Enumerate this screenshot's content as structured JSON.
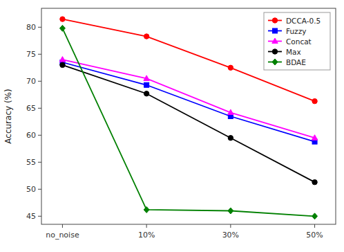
{
  "chart_data": {
    "type": "line",
    "categories": [
      "no_noise",
      "10%",
      "30%",
      "50%"
    ],
    "series": [
      {
        "name": "DCCA-0.5",
        "color": "#ff0000",
        "marker": "circle",
        "values": [
          81.5,
          78.3,
          72.5,
          66.3
        ]
      },
      {
        "name": "Fuzzy",
        "color": "#0000ff",
        "marker": "square",
        "values": [
          73.5,
          69.3,
          63.5,
          58.8
        ]
      },
      {
        "name": "Concat",
        "color": "#ff00ff",
        "marker": "triangle",
        "values": [
          74.0,
          70.5,
          64.2,
          59.5
        ]
      },
      {
        "name": "Max",
        "color": "#000000",
        "marker": "circle",
        "values": [
          73.0,
          67.7,
          59.5,
          51.3
        ]
      },
      {
        "name": "BDAE",
        "color": "#008000",
        "marker": "diamond",
        "values": [
          79.8,
          46.2,
          46.0,
          45.0
        ]
      }
    ],
    "ylabel": "Accuracy (%)",
    "ylim": [
      43.5,
      83.5
    ],
    "yticks": [
      45,
      50,
      55,
      60,
      65,
      70,
      75,
      80
    ],
    "grid": false,
    "legend": "upper right"
  }
}
